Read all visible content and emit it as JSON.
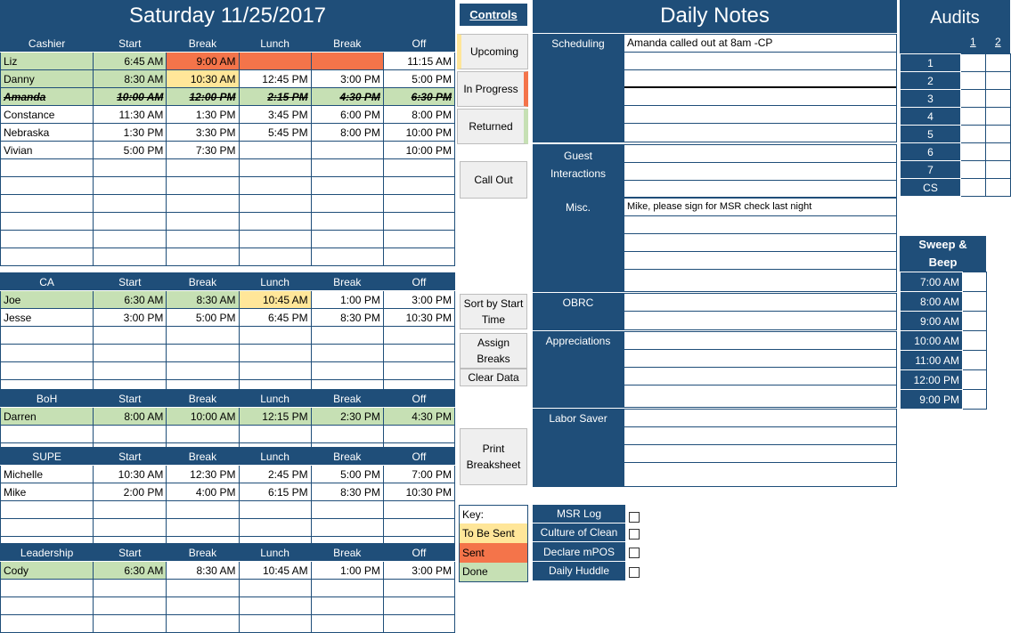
{
  "title": "Saturday 11/25/2017",
  "columns_cashier": [
    "Cashier",
    "Start",
    "Break",
    "Lunch",
    "Break",
    "Off"
  ],
  "cashier_rows": [
    [
      "Liz",
      "6:45 AM",
      "9:00 AM",
      "",
      "",
      "11:15 AM"
    ],
    [
      "Danny",
      "8:30 AM",
      "10:30 AM",
      "12:45 PM",
      "3:00 PM",
      "5:00 PM"
    ],
    [
      "Amanda",
      "10:00 AM",
      "12:00 PM",
      "2:15 PM",
      "4:30 PM",
      "6:30 PM"
    ],
    [
      "Constance",
      "11:30 AM",
      "1:30 PM",
      "3:45 PM",
      "6:00 PM",
      "8:00 PM"
    ],
    [
      "Nebraska",
      "1:30 PM",
      "3:30 PM",
      "5:45 PM",
      "8:00 PM",
      "10:00 PM"
    ],
    [
      "Vivian",
      "5:00 PM",
      "7:30 PM",
      "",
      "",
      "10:00 PM"
    ]
  ],
  "columns_ca": [
    "CA",
    "Start",
    "Break",
    "Lunch",
    "Break",
    "Off"
  ],
  "ca_rows": [
    [
      "Joe",
      "6:30 AM",
      "8:30 AM",
      "10:45 AM",
      "1:00 PM",
      "3:00 PM"
    ],
    [
      "Jesse",
      "3:00 PM",
      "5:00 PM",
      "6:45 PM",
      "8:30 PM",
      "10:30 PM"
    ]
  ],
  "columns_boh": [
    "BoH",
    "Start",
    "Break",
    "Lunch",
    "Break",
    "Off"
  ],
  "boh_rows": [
    [
      "Darren",
      "8:00 AM",
      "10:00 AM",
      "12:15 PM",
      "2:30 PM",
      "4:30 PM"
    ]
  ],
  "columns_supe": [
    "SUPE",
    "Start",
    "Break",
    "Lunch",
    "Break",
    "Off"
  ],
  "supe_rows": [
    [
      "Michelle",
      "10:30 AM",
      "12:30 PM",
      "2:45 PM",
      "5:00 PM",
      "7:00 PM"
    ],
    [
      "Mike",
      "2:00 PM",
      "4:00 PM",
      "6:15 PM",
      "8:30 PM",
      "10:30 PM"
    ]
  ],
  "columns_leadership": [
    "Leadership",
    "Start",
    "Break",
    "Lunch",
    "Break",
    "Off"
  ],
  "leadership_rows": [
    [
      "Cody",
      "6:30 AM",
      "8:30 AM",
      "10:45 AM",
      "1:00 PM",
      "3:00 PM"
    ]
  ],
  "controls": {
    "title": "Controls",
    "upcoming": "Upcoming",
    "in_progress": "In Progress",
    "returned": "Returned",
    "call_out": "Call Out",
    "sort_by": "Sort by Start Time",
    "assign_breaks": "Assign Breaks",
    "clear_data": "Clear Data",
    "print": "Print Breaksheet"
  },
  "key": {
    "label": "Key:",
    "to_be_sent": "To Be Sent",
    "sent": "Sent",
    "done": "Done"
  },
  "notes": {
    "title": "Daily Notes",
    "scheduling": "Scheduling",
    "scheduling_note": "Amanda called out at 8am -CP",
    "guest": "Guest Interactions",
    "misc": "Misc.",
    "misc_note": "Mike, please sign for MSR check last night",
    "obrc": "OBRC",
    "appreciations": "Appreciations",
    "labor_saver": "Labor Saver"
  },
  "checklist": [
    "MSR Log",
    "Culture of Clean",
    "Declare mPOS",
    "Daily Huddle"
  ],
  "audits": {
    "title": "Audits",
    "col1": "1",
    "col2": "2",
    "rows": [
      "1",
      "2",
      "3",
      "4",
      "5",
      "6",
      "7",
      "CS"
    ]
  },
  "sweep": {
    "title": "Sweep & Beep",
    "times": [
      "7:00 AM",
      "8:00 AM",
      "9:00 AM",
      "10:00 AM",
      "11:00 AM",
      "12:00 PM",
      "9:00 PM"
    ]
  },
  "colors": {
    "navy": "#1f4e79",
    "green": "#c6e0b4",
    "yellow": "#ffe699",
    "orange": "#f4744a"
  }
}
